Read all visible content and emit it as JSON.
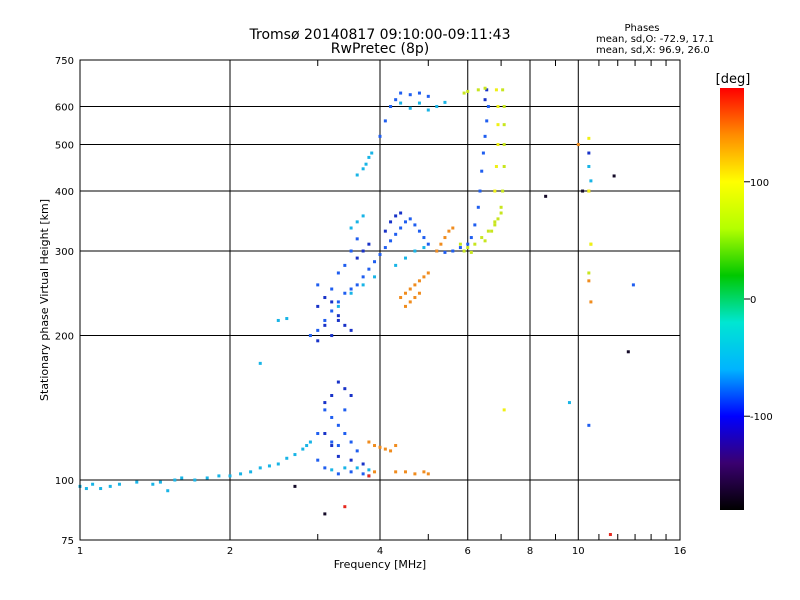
{
  "chart_data": {
    "type": "scatter",
    "title": "Tromsø 20140817 09:10:00-09:11:43",
    "subtitle": "RwPretec (8p)",
    "xlabel": "Frequency [MHz]",
    "ylabel": "Stationary phase Virtual Height [km]",
    "x_scale": "log",
    "y_scale": "log",
    "xlim": [
      1,
      16
    ],
    "ylim": [
      75,
      750
    ],
    "x_ticks": [
      1,
      2,
      4,
      6,
      8,
      10,
      16
    ],
    "x_minor_ticks": [
      3,
      5,
      7,
      9,
      11,
      12,
      13,
      14,
      15
    ],
    "y_ticks": [
      75,
      100,
      200,
      300,
      400,
      500,
      600,
      750
    ],
    "y_labeled_ticks": [
      75,
      100,
      200,
      300,
      400,
      500,
      600,
      750
    ],
    "grid": true,
    "phase_stats": {
      "header": "Phases",
      "line1": "mean, sd,O: -72.9, 17.1",
      "line2": "mean, sd,X:  96.9, 26.0"
    },
    "colorbar": {
      "label": "[deg]",
      "range": [
        -180,
        180
      ],
      "ticks": [
        100,
        0,
        -100
      ],
      "colors": [
        "#000000",
        "#3a0070",
        "#0000ff",
        "#00b4ff",
        "#00e6d2",
        "#00c800",
        "#b4ff00",
        "#ffff00",
        "#ff8c00",
        "#ff0000"
      ]
    },
    "series": [
      {
        "color": "#18b4e6",
        "points": [
          [
            1.0,
            97
          ],
          [
            1.03,
            96
          ],
          [
            1.06,
            98
          ],
          [
            1.1,
            96
          ],
          [
            1.15,
            97
          ],
          [
            1.2,
            98
          ],
          [
            1.3,
            99
          ],
          [
            1.4,
            98
          ],
          [
            1.45,
            99
          ],
          [
            1.5,
            95
          ],
          [
            1.55,
            100
          ],
          [
            1.6,
            101
          ],
          [
            1.7,
            100
          ],
          [
            1.8,
            101
          ],
          [
            1.9,
            102
          ],
          [
            2.0,
            102
          ],
          [
            2.1,
            103
          ],
          [
            2.2,
            104
          ],
          [
            2.3,
            106
          ],
          [
            2.4,
            107
          ],
          [
            2.5,
            108
          ],
          [
            2.6,
            111
          ],
          [
            2.7,
            113
          ],
          [
            2.8,
            116
          ],
          [
            2.85,
            118
          ],
          [
            2.9,
            120
          ],
          [
            2.3,
            175
          ],
          [
            2.5,
            215
          ],
          [
            2.6,
            217
          ],
          [
            3.2,
            105
          ],
          [
            3.4,
            106
          ],
          [
            3.6,
            106
          ],
          [
            3.8,
            105
          ],
          [
            3.6,
            432
          ],
          [
            3.7,
            445
          ],
          [
            3.75,
            455
          ],
          [
            3.8,
            470
          ],
          [
            3.85,
            480
          ],
          [
            3.5,
            335
          ],
          [
            3.6,
            345
          ],
          [
            3.7,
            355
          ],
          [
            4.2,
            600
          ],
          [
            4.4,
            610
          ],
          [
            4.6,
            595
          ],
          [
            4.8,
            610
          ],
          [
            5.0,
            590
          ],
          [
            5.2,
            600
          ],
          [
            5.4,
            612
          ],
          [
            4.3,
            280
          ],
          [
            4.5,
            290
          ],
          [
            4.7,
            300
          ],
          [
            4.9,
            305
          ],
          [
            3.3,
            230
          ],
          [
            3.5,
            245
          ],
          [
            3.7,
            255
          ],
          [
            3.9,
            265
          ],
          [
            9.6,
            145
          ],
          [
            10.5,
            450
          ],
          [
            10.6,
            420
          ]
        ]
      },
      {
        "color": "#1f5ef0",
        "points": [
          [
            2.9,
            200
          ],
          [
            3.0,
            205
          ],
          [
            3.1,
            215
          ],
          [
            3.2,
            225
          ],
          [
            3.3,
            235
          ],
          [
            3.4,
            245
          ],
          [
            3.5,
            250
          ],
          [
            3.6,
            255
          ],
          [
            3.7,
            265
          ],
          [
            3.8,
            275
          ],
          [
            3.9,
            285
          ],
          [
            4.0,
            295
          ],
          [
            4.1,
            305
          ],
          [
            4.2,
            315
          ],
          [
            4.3,
            325
          ],
          [
            4.4,
            335
          ],
          [
            4.5,
            345
          ],
          [
            4.6,
            350
          ],
          [
            4.7,
            340
          ],
          [
            4.8,
            330
          ],
          [
            4.9,
            320
          ],
          [
            5.0,
            310
          ],
          [
            5.2,
            300
          ],
          [
            5.4,
            298
          ],
          [
            5.6,
            300
          ],
          [
            5.8,
            305
          ],
          [
            6.0,
            310
          ],
          [
            6.1,
            320
          ],
          [
            6.2,
            340
          ],
          [
            6.3,
            370
          ],
          [
            6.35,
            400
          ],
          [
            6.4,
            440
          ],
          [
            6.45,
            480
          ],
          [
            6.5,
            520
          ],
          [
            6.55,
            560
          ],
          [
            6.6,
            600
          ],
          [
            4.0,
            520
          ],
          [
            4.1,
            560
          ],
          [
            4.2,
            600
          ],
          [
            4.3,
            620
          ],
          [
            4.4,
            640
          ],
          [
            4.6,
            635
          ],
          [
            4.8,
            640
          ],
          [
            5.0,
            630
          ],
          [
            3.2,
            250
          ],
          [
            3.0,
            255
          ],
          [
            3.3,
            270
          ],
          [
            3.4,
            280
          ],
          [
            3.5,
            300
          ],
          [
            3.6,
            318
          ],
          [
            3.1,
            140
          ],
          [
            3.2,
            135
          ],
          [
            3.3,
            130
          ],
          [
            3.4,
            125
          ],
          [
            3.5,
            120
          ],
          [
            3.6,
            115
          ],
          [
            3.0,
            110
          ],
          [
            3.1,
            106
          ],
          [
            3.3,
            103
          ],
          [
            3.5,
            104
          ],
          [
            3.7,
            103
          ],
          [
            3.8,
            102
          ],
          [
            3.2,
            120
          ],
          [
            3.0,
            125
          ],
          [
            3.3,
            118
          ],
          [
            3.4,
            140
          ],
          [
            10.5,
            130
          ],
          [
            12.9,
            255
          ]
        ]
      },
      {
        "color": "#1832c8",
        "points": [
          [
            3.0,
            230
          ],
          [
            3.1,
            240
          ],
          [
            3.2,
            235
          ],
          [
            3.3,
            220
          ],
          [
            3.4,
            210
          ],
          [
            3.5,
            205
          ],
          [
            3.0,
            195
          ],
          [
            3.1,
            210
          ],
          [
            3.2,
            200
          ],
          [
            3.3,
            215
          ],
          [
            3.6,
            290
          ],
          [
            3.7,
            300
          ],
          [
            3.8,
            310
          ],
          [
            4.1,
            330
          ],
          [
            4.2,
            345
          ],
          [
            4.3,
            355
          ],
          [
            4.4,
            360
          ],
          [
            3.1,
            145
          ],
          [
            3.2,
            150
          ],
          [
            3.3,
            160
          ],
          [
            3.4,
            155
          ],
          [
            3.5,
            150
          ],
          [
            3.1,
            125
          ],
          [
            3.2,
            118
          ],
          [
            3.3,
            112
          ],
          [
            3.5,
            110
          ],
          [
            3.7,
            108
          ],
          [
            6.55,
            650
          ],
          [
            6.5,
            620
          ],
          [
            10.5,
            480
          ]
        ]
      },
      {
        "color": "#f08c1e",
        "points": [
          [
            4.4,
            240
          ],
          [
            4.5,
            245
          ],
          [
            4.6,
            250
          ],
          [
            4.7,
            255
          ],
          [
            4.8,
            260
          ],
          [
            4.9,
            265
          ],
          [
            5.0,
            270
          ],
          [
            4.5,
            230
          ],
          [
            4.6,
            235
          ],
          [
            4.7,
            240
          ],
          [
            4.8,
            245
          ],
          [
            5.2,
            300
          ],
          [
            5.3,
            310
          ],
          [
            5.4,
            320
          ],
          [
            5.5,
            330
          ],
          [
            5.6,
            335
          ],
          [
            3.8,
            120
          ],
          [
            3.9,
            118
          ],
          [
            4.0,
            117
          ],
          [
            4.1,
            116
          ],
          [
            4.2,
            115
          ],
          [
            4.3,
            118
          ],
          [
            3.9,
            104
          ],
          [
            4.3,
            104
          ],
          [
            4.5,
            104
          ],
          [
            4.7,
            103
          ],
          [
            4.9,
            104
          ],
          [
            5.0,
            103
          ],
          [
            10.0,
            500
          ],
          [
            10.5,
            400
          ],
          [
            10.5,
            260
          ],
          [
            10.6,
            235
          ]
        ]
      },
      {
        "color": "#c8e61e",
        "points": [
          [
            5.8,
            310
          ],
          [
            6.0,
            305
          ],
          [
            6.2,
            310
          ],
          [
            6.4,
            320
          ],
          [
            6.6,
            330
          ],
          [
            6.8,
            340
          ],
          [
            6.9,
            350
          ],
          [
            7.0,
            370
          ],
          [
            7.05,
            400
          ],
          [
            7.1,
            450
          ],
          [
            7.1,
            500
          ],
          [
            7.1,
            550
          ],
          [
            7.1,
            600
          ],
          [
            7.05,
            650
          ],
          [
            5.9,
            300
          ],
          [
            6.1,
            298
          ],
          [
            6.5,
            315
          ],
          [
            6.7,
            330
          ],
          [
            6.8,
            345
          ],
          [
            7.0,
            360
          ],
          [
            6.3,
            650
          ],
          [
            6.5,
            655
          ],
          [
            5.9,
            640
          ],
          [
            6.0,
            645
          ],
          [
            10.5,
            270
          ],
          [
            10.6,
            310
          ]
        ]
      },
      {
        "color": "#f0f014",
        "points": [
          [
            6.8,
            400
          ],
          [
            6.85,
            450
          ],
          [
            6.9,
            500
          ],
          [
            6.9,
            550
          ],
          [
            6.9,
            600
          ],
          [
            6.85,
            650
          ],
          [
            7.1,
            140
          ],
          [
            10.5,
            400
          ],
          [
            10.6,
            310
          ],
          [
            10.5,
            515
          ]
        ]
      },
      {
        "color": "#140a28",
        "points": [
          [
            2.7,
            97
          ],
          [
            3.1,
            85
          ],
          [
            11.8,
            430
          ],
          [
            12.6,
            185
          ],
          [
            8.6,
            390
          ],
          [
            10.2,
            400
          ]
        ]
      },
      {
        "color": "#e6281e",
        "points": [
          [
            3.4,
            88
          ],
          [
            3.8,
            102
          ],
          [
            11.6,
            77
          ]
        ]
      }
    ]
  }
}
